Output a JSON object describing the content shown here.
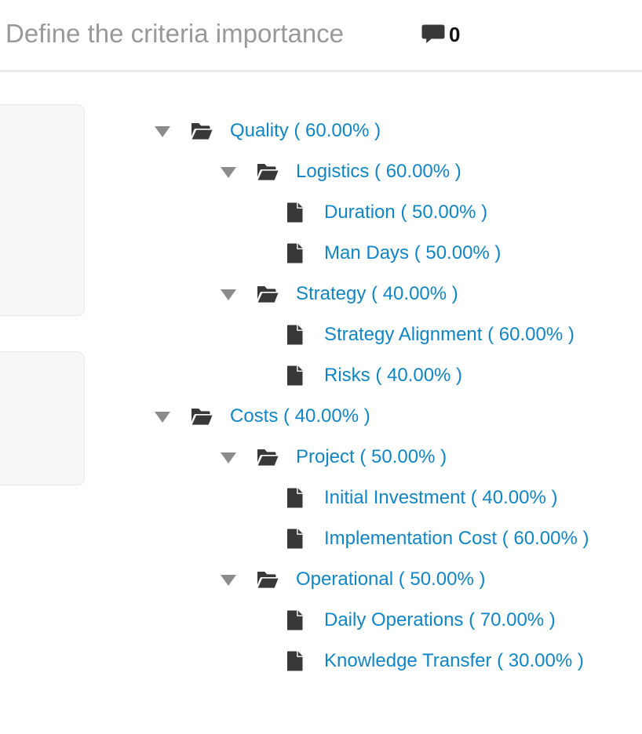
{
  "header": {
    "title": "Define the criteria importance",
    "comment_count": "0"
  },
  "colors": {
    "title_gray": "#999999",
    "link_blue": "#0f86c8",
    "icon_dark": "#383838",
    "caret_gray": "#8b8b8b",
    "divider": "#ebebeb",
    "card_bg": "#f6f6f6",
    "card_border": "#e8e8e8"
  },
  "tree": {
    "items": [
      {
        "label": "Quality ( 60.00% )",
        "type": "folder",
        "level": 1,
        "expanded": true
      },
      {
        "label": "Logistics ( 60.00% )",
        "type": "folder",
        "level": 2,
        "expanded": true
      },
      {
        "label": "Duration ( 50.00% )",
        "type": "leaf",
        "level": 3
      },
      {
        "label": "Man Days ( 50.00% )",
        "type": "leaf",
        "level": 3
      },
      {
        "label": "Strategy ( 40.00% )",
        "type": "folder",
        "level": 2,
        "expanded": true
      },
      {
        "label": "Strategy Alignment ( 60.00% )",
        "type": "leaf",
        "level": 3
      },
      {
        "label": "Risks ( 40.00% )",
        "type": "leaf",
        "level": 3
      },
      {
        "label": "Costs ( 40.00% )",
        "type": "folder",
        "level": 1,
        "expanded": true
      },
      {
        "label": "Project ( 50.00% )",
        "type": "folder",
        "level": 2,
        "expanded": true
      },
      {
        "label": "Initial Investment ( 40.00% )",
        "type": "leaf",
        "level": 3
      },
      {
        "label": "Implementation Cost ( 60.00% )",
        "type": "leaf",
        "level": 3
      },
      {
        "label": "Operational ( 50.00% )",
        "type": "folder",
        "level": 2,
        "expanded": true
      },
      {
        "label": "Daily Operations ( 70.00% )",
        "type": "leaf",
        "level": 3
      },
      {
        "label": "Knowledge Transfer ( 30.00% )",
        "type": "leaf",
        "level": 3
      }
    ]
  }
}
